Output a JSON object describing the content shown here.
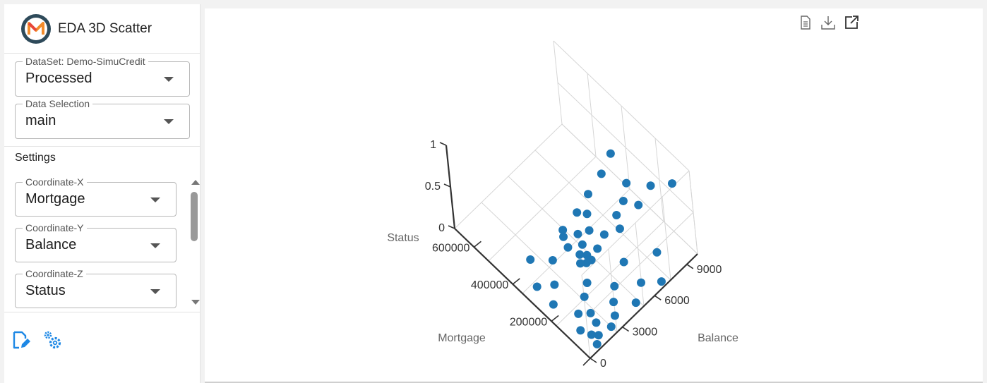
{
  "app": {
    "title": "EDA 3D Scatter"
  },
  "dataset": {
    "legend": "DataSet: Demo-SimuCredit",
    "value": "Processed"
  },
  "data_selection": {
    "legend": "Data Selection",
    "value": "main"
  },
  "settings": {
    "label": "Settings",
    "coord_x": {
      "legend": "Coordinate-X",
      "value": "Mortgage"
    },
    "coord_y": {
      "legend": "Coordinate-Y",
      "value": "Balance"
    },
    "coord_z": {
      "legend": "Coordinate-Z",
      "value": "Status"
    }
  },
  "icons": {
    "edit": "edit-note-icon",
    "settings": "gears-icon",
    "toolbar": [
      "document-icon",
      "download-icon",
      "open-external-icon"
    ]
  },
  "colors": {
    "accent": "#1e88e5",
    "point": "#1f77b4"
  },
  "chart_data": {
    "type": "scatter",
    "dimensions": 3,
    "x_label": "Mortgage",
    "y_label": "Balance",
    "z_label": "Status",
    "x_ticks": [
      "200000",
      "400000",
      "600000"
    ],
    "y_ticks": [
      "0",
      "3000",
      "6000",
      "9000"
    ],
    "z_ticks": [
      "0",
      "0.5",
      "1"
    ],
    "xlim": [
      0,
      700000
    ],
    "ylim": [
      0,
      10000
    ],
    "zlim": [
      0,
      1
    ],
    "grid": true,
    "points": [
      {
        "x": 20000,
        "y": 800,
        "z": 1
      },
      {
        "x": 40000,
        "y": 1200,
        "z": 1
      },
      {
        "x": 60000,
        "y": 900,
        "z": 1
      },
      {
        "x": 30000,
        "y": 2000,
        "z": 1
      },
      {
        "x": 80000,
        "y": 1500,
        "z": 1
      },
      {
        "x": 100000,
        "y": 2500,
        "z": 1
      },
      {
        "x": 50000,
        "y": 3000,
        "z": 1
      },
      {
        "x": 120000,
        "y": 1800,
        "z": 1
      },
      {
        "x": 150000,
        "y": 3200,
        "z": 1
      },
      {
        "x": 25000,
        "y": 4000,
        "z": 1
      },
      {
        "x": 70000,
        "y": 4500,
        "z": 1
      },
      {
        "x": 180000,
        "y": 2800,
        "z": 1
      },
      {
        "x": 200000,
        "y": 4200,
        "z": 1
      },
      {
        "x": 90000,
        "y": 5500,
        "z": 1
      },
      {
        "x": 40000,
        "y": 6000,
        "z": 1
      },
      {
        "x": 130000,
        "y": 6500,
        "z": 1
      },
      {
        "x": 220000,
        "y": 5800,
        "z": 1
      },
      {
        "x": 60000,
        "y": 7500,
        "z": 1
      },
      {
        "x": 10000,
        "y": 8600,
        "z": 1
      },
      {
        "x": 250000,
        "y": 7200,
        "z": 1
      },
      {
        "x": 150000,
        "y": 1000,
        "z": 1
      },
      {
        "x": 35000,
        "y": 500,
        "z": 1
      },
      {
        "x": 110000,
        "y": 700,
        "z": 1
      },
      {
        "x": 170000,
        "y": 1300,
        "z": 1
      },
      {
        "x": 20000,
        "y": 1000,
        "z": 0
      },
      {
        "x": 40000,
        "y": 1500,
        "z": 0
      },
      {
        "x": 60000,
        "y": 1200,
        "z": 0
      },
      {
        "x": 80000,
        "y": 2000,
        "z": 0
      },
      {
        "x": 30000,
        "y": 2500,
        "z": 0
      },
      {
        "x": 100000,
        "y": 900,
        "z": 0
      },
      {
        "x": 120000,
        "y": 2200,
        "z": 0
      },
      {
        "x": 50000,
        "y": 3200,
        "z": 0
      },
      {
        "x": 150000,
        "y": 1600,
        "z": 0
      },
      {
        "x": 90000,
        "y": 3800,
        "z": 0
      },
      {
        "x": 180000,
        "y": 2700,
        "z": 0
      },
      {
        "x": 30000,
        "y": 4800,
        "z": 0
      },
      {
        "x": 130000,
        "y": 4600,
        "z": 0
      },
      {
        "x": 210000,
        "y": 3500,
        "z": 0
      },
      {
        "x": 70000,
        "y": 6000,
        "z": 0
      },
      {
        "x": 20000,
        "y": 7000,
        "z": 0
      },
      {
        "x": 170000,
        "y": 6200,
        "z": 0
      },
      {
        "x": 260000,
        "y": 4800,
        "z": 0
      },
      {
        "x": 110000,
        "y": 8200,
        "z": 0
      },
      {
        "x": 290000,
        "y": 1900,
        "z": 0
      },
      {
        "x": 330000,
        "y": 1000,
        "z": 0
      },
      {
        "x": 360000,
        "y": 3000,
        "z": 0
      },
      {
        "x": 420000,
        "y": 2000,
        "z": 0
      },
      {
        "x": 240000,
        "y": 900,
        "z": 0
      }
    ]
  }
}
